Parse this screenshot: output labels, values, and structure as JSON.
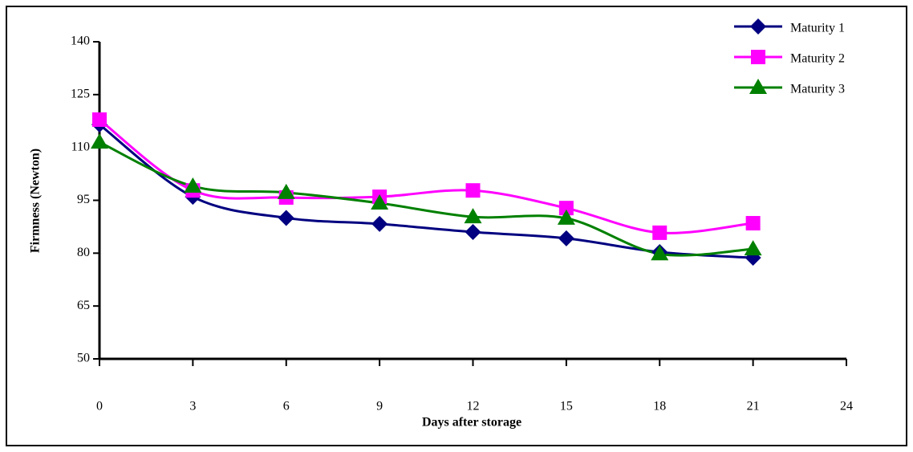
{
  "chart_data": {
    "type": "line",
    "x_label": "Days after storage",
    "y_label": "Firmness (Newton)",
    "x": [
      0,
      3,
      6,
      9,
      12,
      15,
      18,
      21
    ],
    "xlim": [
      0,
      24
    ],
    "xticks": [
      0,
      3,
      6,
      9,
      12,
      15,
      18,
      21,
      24
    ],
    "ylim": [
      50,
      140
    ],
    "yticks": [
      50,
      65,
      80,
      95,
      110,
      125,
      140
    ],
    "grid": false,
    "legend": "upper right",
    "smooth": true,
    "series": [
      {
        "name": "Maturity 1",
        "color": "#000080",
        "marker": "diamond",
        "values": [
          116.5,
          96,
          90,
          88.3,
          86,
          84.2,
          80.3,
          78.7
        ]
      },
      {
        "name": "Maturity 2",
        "color": "#ff00ff",
        "marker": "square",
        "values": [
          117.9,
          97.8,
          95.8,
          96,
          97.8,
          92.8,
          85.8,
          88.5
        ]
      },
      {
        "name": "Maturity 3",
        "color": "#008000",
        "marker": "triangle",
        "values": [
          111.5,
          99,
          97.2,
          94.2,
          90.3,
          89.9,
          79.8,
          81.2
        ]
      }
    ]
  }
}
